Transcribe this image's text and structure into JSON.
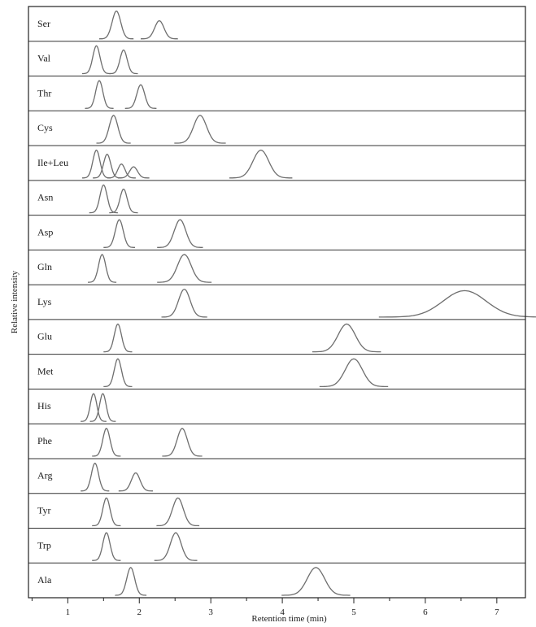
{
  "chart_data": {
    "type": "line",
    "xlabel": "Retention time (min)",
    "ylabel": "Relative intensity",
    "xlim": [
      0.45,
      7.4
    ],
    "x_ticks": [
      1,
      2,
      3,
      4,
      5,
      6,
      7
    ],
    "grid": false,
    "legend": "none",
    "series": [
      {
        "name": "Ser",
        "peaks": [
          {
            "x": 1.68,
            "h": 1.0,
            "w": 0.06
          },
          {
            "x": 2.28,
            "h": 0.65,
            "w": 0.065
          }
        ]
      },
      {
        "name": "Val",
        "peaks": [
          {
            "x": 1.4,
            "h": 1.0,
            "w": 0.05
          },
          {
            "x": 1.78,
            "h": 0.85,
            "w": 0.05
          }
        ]
      },
      {
        "name": "Thr",
        "peaks": [
          {
            "x": 1.44,
            "h": 1.0,
            "w": 0.05
          },
          {
            "x": 2.02,
            "h": 0.85,
            "w": 0.055
          }
        ]
      },
      {
        "name": "Cys",
        "peaks": [
          {
            "x": 1.64,
            "h": 1.0,
            "w": 0.06
          },
          {
            "x": 2.85,
            "h": 1.0,
            "w": 0.09
          }
        ]
      },
      {
        "name": "Ile+Leu",
        "peaks": [
          {
            "x": 1.4,
            "h": 1.0,
            "w": 0.05
          },
          {
            "x": 1.55,
            "h": 0.85,
            "w": 0.05
          },
          {
            "x": 1.75,
            "h": 0.5,
            "w": 0.05
          },
          {
            "x": 1.92,
            "h": 0.4,
            "w": 0.055
          },
          {
            "x": 3.7,
            "h": 1.0,
            "w": 0.11
          }
        ]
      },
      {
        "name": "Asn",
        "peaks": [
          {
            "x": 1.5,
            "h": 1.0,
            "w": 0.05
          },
          {
            "x": 1.78,
            "h": 0.85,
            "w": 0.05
          }
        ]
      },
      {
        "name": "Asp",
        "peaks": [
          {
            "x": 1.72,
            "h": 1.0,
            "w": 0.055
          },
          {
            "x": 2.57,
            "h": 1.0,
            "w": 0.08
          }
        ]
      },
      {
        "name": "Gln",
        "peaks": [
          {
            "x": 1.48,
            "h": 1.0,
            "w": 0.05
          },
          {
            "x": 2.63,
            "h": 1.0,
            "w": 0.095
          }
        ]
      },
      {
        "name": "Lys",
        "peaks": [
          {
            "x": 2.63,
            "h": 1.0,
            "w": 0.08
          },
          {
            "x": 6.55,
            "h": 0.95,
            "w": 0.3
          }
        ]
      },
      {
        "name": "Glu",
        "peaks": [
          {
            "x": 1.7,
            "h": 1.0,
            "w": 0.05
          },
          {
            "x": 4.9,
            "h": 1.0,
            "w": 0.12
          }
        ]
      },
      {
        "name": "Met",
        "peaks": [
          {
            "x": 1.7,
            "h": 1.0,
            "w": 0.05
          },
          {
            "x": 5.0,
            "h": 1.0,
            "w": 0.12
          }
        ]
      },
      {
        "name": "His",
        "peaks": [
          {
            "x": 1.36,
            "h": 1.0,
            "w": 0.045
          },
          {
            "x": 1.49,
            "h": 1.0,
            "w": 0.045
          }
        ]
      },
      {
        "name": "Phe",
        "peaks": [
          {
            "x": 1.54,
            "h": 1.0,
            "w": 0.05
          },
          {
            "x": 2.6,
            "h": 1.0,
            "w": 0.07
          }
        ]
      },
      {
        "name": "Arg",
        "peaks": [
          {
            "x": 1.38,
            "h": 1.0,
            "w": 0.05
          },
          {
            "x": 1.95,
            "h": 0.65,
            "w": 0.06
          }
        ]
      },
      {
        "name": "Tyr",
        "peaks": [
          {
            "x": 1.54,
            "h": 1.0,
            "w": 0.05
          },
          {
            "x": 2.54,
            "h": 1.0,
            "w": 0.075
          }
        ]
      },
      {
        "name": "Trp",
        "peaks": [
          {
            "x": 1.54,
            "h": 1.0,
            "w": 0.05
          },
          {
            "x": 2.51,
            "h": 1.0,
            "w": 0.075
          }
        ]
      },
      {
        "name": "Ala",
        "peaks": [
          {
            "x": 1.88,
            "h": 1.0,
            "w": 0.055
          },
          {
            "x": 4.47,
            "h": 1.0,
            "w": 0.12
          }
        ]
      }
    ]
  }
}
